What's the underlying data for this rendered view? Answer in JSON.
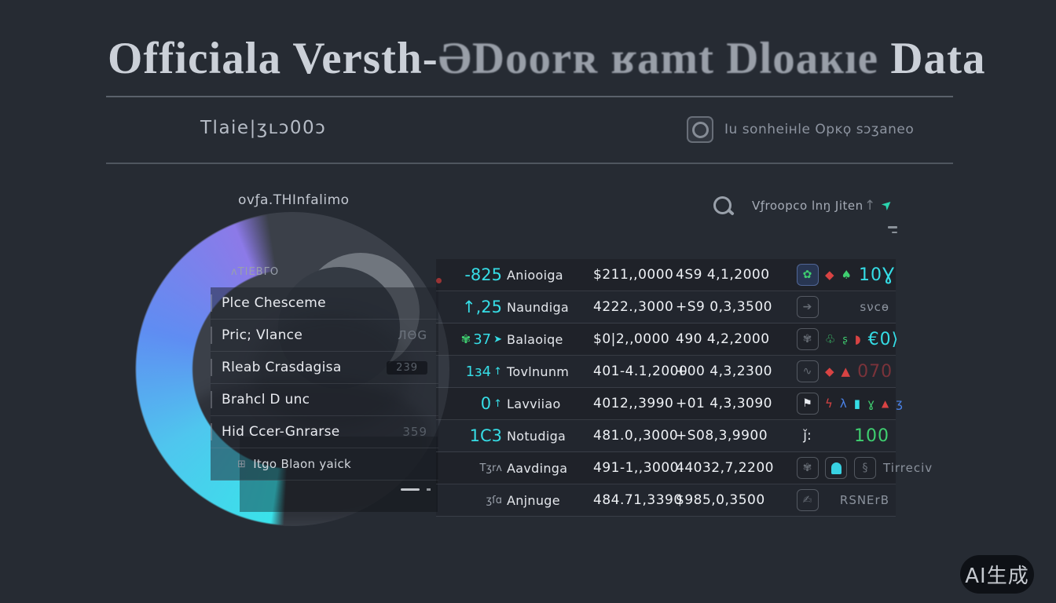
{
  "title": {
    "part1": "Officiala Versth-",
    "part2": "ƏDoorʀ ʁamt Dloaĸıe ",
    "part3": "Data"
  },
  "header": {
    "left_stat": "Tlaie|ʒʟɔ00ɔ",
    "right_label": "Iu sonheiʜle Opĸϙ sɔʒaneo",
    "right_icon": "camera-icon"
  },
  "toolbar": {
    "search_text": "Vƒroopco lnŋ Jiten",
    "up_arrow": "↑",
    "go_arrow": "➤"
  },
  "chart": {
    "label": "ovƒa.THInfalimo",
    "type": "donut-arc",
    "arc_colors": [
      "#8c7ae8",
      "#5f8df2",
      "#3ae2ea"
    ],
    "body_color": "rgba(136,143,155,0.22)"
  },
  "legend": {
    "items": [
      {
        "label": "ʌTIEBΓO",
        "style": "faded"
      },
      {
        "label": "Plce Chesceme",
        "tick": true
      },
      {
        "label": "Pric; Vlance",
        "tick": true,
        "note": "ЛΘG"
      },
      {
        "label": "Rleab Crasdagisa",
        "tick": true,
        "note": "239",
        "note_style": "chip"
      },
      {
        "label": "Brahcl D unc",
        "tick": true
      },
      {
        "label": "Hid Ccer-Gnrarse",
        "tick": true,
        "note": "359",
        "note_style": "ghost"
      },
      {
        "label": "Itgo Blaon yaick",
        "style": "sub",
        "icon": "grid-icon",
        "icon_glyph": "⊞"
      }
    ]
  },
  "table": {
    "rows": [
      {
        "value": "-825",
        "vstyle": "",
        "prefix": "dot",
        "name": "Aniooiga",
        "price1": "$211,,0000",
        "price2": "4S9 4,1,2000",
        "box": {
          "glyph": "✿",
          "style": "g-green",
          "tint": true
        },
        "extras": [
          {
            "t": "◆",
            "c": "x-red"
          },
          {
            "t": "♠",
            "c": "x-green"
          },
          {
            "t": "10Ɣ",
            "c": "x-teal x-big x-label"
          }
        ]
      },
      {
        "value": "↑,25",
        "vstyle": "",
        "name": "Naundiga",
        "price1": "4222.,3000",
        "price2": "+S9 0,3,3500",
        "box": {
          "glyph": "➔",
          "style": "g-faint"
        },
        "extras": [
          {
            "t": "sνcɵ",
            "c": "x-gray x-label"
          }
        ]
      },
      {
        "value": "37",
        "vstyle": "sm",
        "prefixg": "✾",
        "suffix": "➤",
        "name": "Balaoiqe",
        "price1": "$0|2,,0000",
        "price2": "490 4,2,2000",
        "box": {
          "glyph": "✾",
          "style": "g-faint"
        },
        "extras": [
          {
            "t": "♧",
            "c": "x-green"
          },
          {
            "t": "ʂ",
            "c": "x-green x-sm"
          },
          {
            "t": "◗",
            "c": "x-red"
          },
          {
            "t": "€0⟩",
            "c": "x-teal x-big x-label"
          }
        ]
      },
      {
        "value": "1ɜ4",
        "vstyle": "sm",
        "suffix": "↑",
        "name": "Tovlnunm",
        "price1": "401-4.1,2000",
        "price2": "+00 4,3,2300",
        "box": {
          "glyph": "∿",
          "style": "g-faint"
        },
        "extras": [
          {
            "t": "◆",
            "c": "x-red"
          },
          {
            "t": "▲",
            "c": "x-red"
          },
          {
            "t": "070",
            "c": "x-darkred x-big x-label"
          }
        ]
      },
      {
        "value": "0",
        "vstyle": "",
        "suffix": "↑",
        "name": "Lavviiao",
        "price1": "4012,,3990",
        "price2": "+01 4,3,3090",
        "box": {
          "glyph": "⚑",
          "style": "g-white"
        },
        "extras": [
          {
            "t": "ϟ",
            "c": "x-red"
          },
          {
            "t": "λ",
            "c": "x-blue"
          },
          {
            "t": "▮",
            "c": "x-teal"
          },
          {
            "t": "ɣ",
            "c": "x-green"
          },
          {
            "t": "▲",
            "c": "x-red x-sm"
          },
          {
            "t": "ʒ",
            "c": "x-blue"
          }
        ]
      },
      {
        "value": "1C3",
        "vstyle": "",
        "name": "Notudiga",
        "price1": "481.0,,3000",
        "price2": "+S08,3,9900",
        "box": {
          "glyph": "ǰ:",
          "style": "g-white",
          "noborder": true
        },
        "extras": [
          {
            "t": "100",
            "c": "x-green x-big x-label"
          }
        ]
      },
      {
        "value": "Tʒrʌ",
        "vstyle": "xs",
        "name": "Aavdinga",
        "price1": "491-1,,3000",
        "price2": "44032,7,2200",
        "box": {
          "glyph": "✾",
          "style": "g-faint"
        },
        "extras": [
          {
            "bell": true
          },
          {
            "t": "§",
            "box": true
          },
          {
            "t": "Tirreciv",
            "c": "x-gray x-label"
          }
        ]
      },
      {
        "value": "ʒſɑ",
        "vstyle": "xs",
        "name": "Anjnuge",
        "price1": "484.71,3390",
        "price2": "$985,0,3500",
        "box": {
          "glyph": "✍",
          "style": "g-faint"
        },
        "extras": [
          {
            "t": "RSNErB",
            "c": "x-gray x-label"
          }
        ]
      }
    ]
  },
  "watermark": "AI生成"
}
